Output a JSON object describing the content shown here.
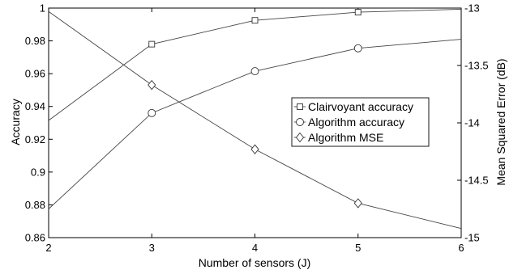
{
  "chart_data": {
    "type": "line",
    "xlabel": "Number of sensors (J)",
    "ylabel_left": "Accuracy",
    "ylabel_right": "Mean Squared Error (dB)",
    "xlim": [
      2,
      6
    ],
    "ylim_left": [
      0.86,
      1
    ],
    "ylim_right": [
      -15,
      -13
    ],
    "x_ticks": [
      "2",
      "3",
      "4",
      "5",
      "6"
    ],
    "y_ticks_left": [
      "0.86",
      "0.88",
      "0.9",
      "0.92",
      "0.94",
      "0.96",
      "0.98",
      "1"
    ],
    "y_ticks_right": [
      "-15",
      "-14.5",
      "-14",
      "-13.5",
      "-13"
    ],
    "grid": false,
    "legend_position": "center-right",
    "series": [
      {
        "name": "Clairvoyant accuracy",
        "axis": "left",
        "marker": "square",
        "x": [
          2,
          3,
          4,
          5,
          6
        ],
        "y": [
          0.9315,
          0.978,
          0.9925,
          0.9975,
          0.9993
        ],
        "marker_x": [
          3,
          4,
          5
        ]
      },
      {
        "name": "Algorithm accuracy",
        "axis": "left",
        "marker": "circle",
        "x": [
          2,
          3,
          4,
          5,
          6
        ],
        "y": [
          0.8775,
          0.936,
          0.9615,
          0.9755,
          0.981
        ],
        "marker_x": [
          3,
          4,
          5
        ]
      },
      {
        "name": "Algorithm MSE",
        "axis": "right",
        "marker": "diamond",
        "x": [
          2,
          3,
          4,
          5,
          6
        ],
        "y": [
          -13.03,
          -13.67,
          -14.23,
          -14.7,
          -14.92
        ],
        "marker_x": [
          3,
          4,
          5
        ]
      }
    ]
  }
}
